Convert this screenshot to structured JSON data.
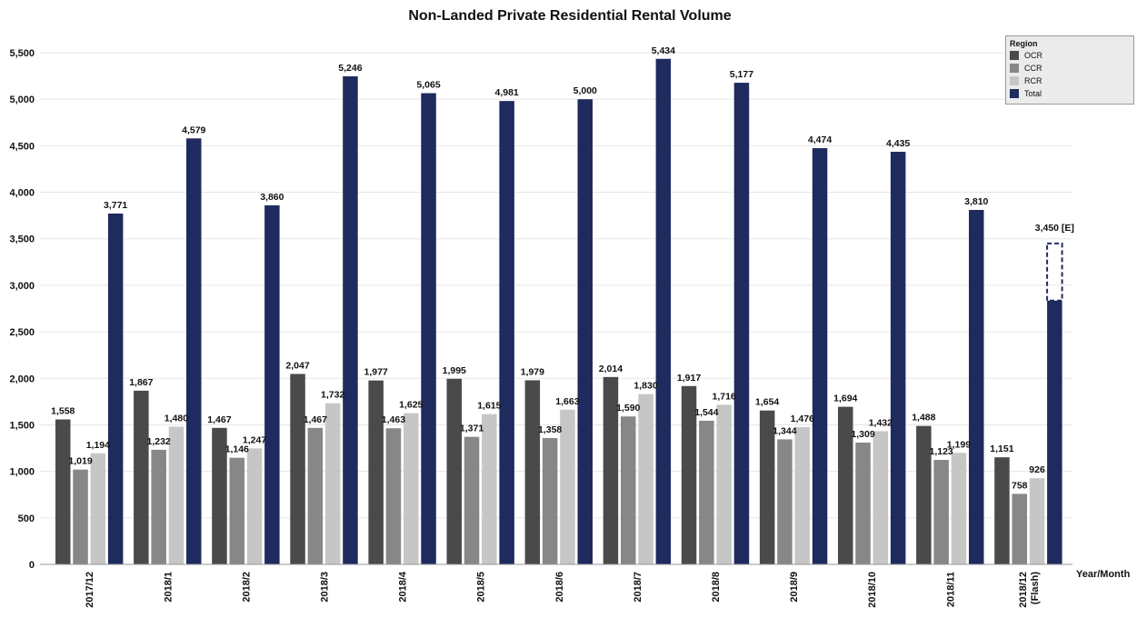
{
  "chart_data": {
    "type": "bar",
    "title": "Non-Landed Private Residential Rental Volume",
    "xlabel": "Year/Month",
    "ylabel": "",
    "ylim": [
      0,
      5500
    ],
    "yticks": [
      "0",
      "500",
      "1,000",
      "1,500",
      "2,000",
      "2,500",
      "3,000",
      "3,500",
      "4,000",
      "4,500",
      "5,000",
      "5,500"
    ],
    "grid": true,
    "legend": {
      "title": "Region",
      "placement": "top-right"
    },
    "categories": [
      "2017/12",
      "2018/1",
      "2018/2",
      "2018/3",
      "2018/4",
      "2018/5",
      "2018/6",
      "2018/7",
      "2018/8",
      "2018/9",
      "2018/10",
      "2018/11",
      "2018/12 (Flash)"
    ],
    "series": [
      {
        "name": "OCR",
        "color": "#4a4a4a",
        "values": [
          1558,
          1867,
          1467,
          2047,
          1977,
          1995,
          1979,
          2014,
          1917,
          1654,
          1694,
          1488,
          1151
        ],
        "labels": [
          "1,558",
          "1,867",
          "1,467",
          "2,047",
          "1,977",
          "1,995",
          "1,979",
          "2,014",
          "1,917",
          "1,654",
          "1,694",
          "1,488",
          "1,151"
        ]
      },
      {
        "name": "CCR",
        "color": "#878787",
        "values": [
          1019,
          1232,
          1146,
          1467,
          1463,
          1371,
          1358,
          1590,
          1544,
          1344,
          1309,
          1123,
          758
        ],
        "labels": [
          "1,019",
          "1,232",
          "1,146",
          "1,467",
          "1,463",
          "1,371",
          "1,358",
          "1,590",
          "1,544",
          "1,344",
          "1,309",
          "1,123",
          "758"
        ]
      },
      {
        "name": "RCR",
        "color": "#c6c6c6",
        "values": [
          1194,
          1480,
          1247,
          1732,
          1625,
          1615,
          1663,
          1830,
          1716,
          1476,
          1432,
          1199,
          926
        ],
        "labels": [
          "1,194",
          "1,480",
          "1,247",
          "1,732",
          "1,625",
          "1,615",
          "1,663",
          "1,830",
          "1,716",
          "1,476",
          "1,432",
          "1,199",
          "926"
        ]
      },
      {
        "name": "Total",
        "color": "#1f2b5e",
        "values": [
          3771,
          4579,
          3860,
          5246,
          5065,
          4981,
          5000,
          5434,
          5177,
          4474,
          4435,
          3810,
          2835
        ],
        "labels": [
          "3,771",
          "4,579",
          "3,860",
          "5,246",
          "5,065",
          "4,981",
          "5,000",
          "5,434",
          "5,177",
          "4,474",
          "4,435",
          "3,810",
          ""
        ]
      }
    ],
    "estimate": {
      "category": "2018/12 (Flash)",
      "value": 3450,
      "label": "3,450 [E]"
    }
  }
}
